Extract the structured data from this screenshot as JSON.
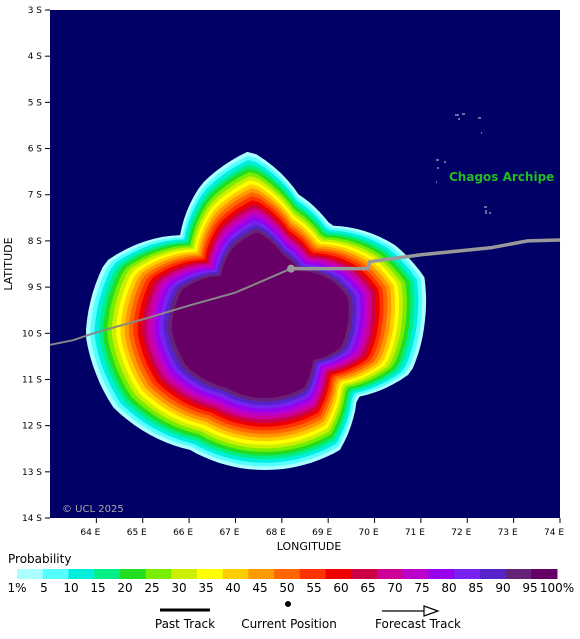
{
  "map": {
    "x_axis_title": "LONGITUDE",
    "y_axis_title": "LATITUDE",
    "copyright": "© UCL 2025",
    "place_label": "Chagos Archipe",
    "lon_range": [
      63.0,
      74.0
    ],
    "lat_range": [
      3.0,
      14.0
    ],
    "lon_ticks": [
      {
        "value": 64,
        "label": "64 E"
      },
      {
        "value": 65,
        "label": "65 E"
      },
      {
        "value": 66,
        "label": "66 E"
      },
      {
        "value": 67,
        "label": "67 E"
      },
      {
        "value": 68,
        "label": "68 E"
      },
      {
        "value": 69,
        "label": "69 E"
      },
      {
        "value": 70,
        "label": "70 E"
      },
      {
        "value": 71,
        "label": "71 E"
      },
      {
        "value": 72,
        "label": "72 E"
      },
      {
        "value": 73,
        "label": "73 E"
      },
      {
        "value": 74,
        "label": "74 E"
      }
    ],
    "lat_ticks": [
      {
        "value": 3,
        "label": "3 S"
      },
      {
        "value": 4,
        "label": "4 S"
      },
      {
        "value": 5,
        "label": "5 S"
      },
      {
        "value": 6,
        "label": "6 S"
      },
      {
        "value": 7,
        "label": "7 S"
      },
      {
        "value": 8,
        "label": "8 S"
      },
      {
        "value": 9,
        "label": "9 S"
      },
      {
        "value": 10,
        "label": "10 S"
      },
      {
        "value": 11,
        "label": "11 S"
      },
      {
        "value": 12,
        "label": "12 S"
      },
      {
        "value": 13,
        "label": "13 S"
      },
      {
        "value": 14,
        "label": "14 S"
      }
    ],
    "current_position": {
      "lon": 68.2,
      "lat": 8.6
    },
    "past_track": [
      [
        63.0,
        10.25
      ],
      [
        63.5,
        10.15
      ],
      [
        64.0,
        9.98
      ],
      [
        65.0,
        9.7
      ],
      [
        66.0,
        9.4
      ],
      [
        67.0,
        9.12
      ],
      [
        68.2,
        8.6
      ]
    ],
    "forecast_track": [
      [
        68.2,
        8.6
      ],
      [
        69.85,
        8.6
      ],
      [
        69.9,
        8.45
      ],
      [
        71.0,
        8.3
      ],
      [
        72.5,
        8.15
      ],
      [
        73.3,
        8.0
      ],
      [
        74.0,
        7.98
      ]
    ],
    "colors": {
      "ocean": "#000066",
      "track_past": "#888888",
      "track_forecast": "#999999",
      "place_label": "#22bb22"
    }
  },
  "legend": {
    "title": "Probability",
    "levels": [
      {
        "label": "1%",
        "color": "#aaffff"
      },
      {
        "label": "5",
        "color": "#55ffff"
      },
      {
        "label": "10",
        "color": "#00ee dd"
      },
      {
        "label": "15",
        "color": "#00ee88"
      },
      {
        "label": "20",
        "color": "#22dd22"
      },
      {
        "label": "25",
        "color": "#77ee00"
      },
      {
        "label": "30",
        "color": "#ccee00"
      },
      {
        "label": "35",
        "color": "#ffff00"
      },
      {
        "label": "40",
        "color": "#ffcc00"
      },
      {
        "label": "45",
        "color": "#ff9900"
      },
      {
        "label": "50",
        "color": "#ff6600"
      },
      {
        "label": "55",
        "color": "#ff3300"
      },
      {
        "label": "60",
        "color": "#ee0000"
      },
      {
        "label": "65",
        "color": "#cc0044"
      },
      {
        "label": "70",
        "color": "#cc0099"
      },
      {
        "label": "75",
        "color": "#bb00cc"
      },
      {
        "label": "80",
        "color": "#9900ee"
      },
      {
        "label": "85",
        "color": "#7722ee"
      },
      {
        "label": "90",
        "color": "#5522cc"
      },
      {
        "label": "95",
        "color": "#662277"
      },
      {
        "label": "100%",
        "color": "#660066"
      }
    ],
    "keys": [
      {
        "label": "Past Track"
      },
      {
        "label": "Current Position"
      },
      {
        "label": "Forecast Track"
      }
    ]
  }
}
